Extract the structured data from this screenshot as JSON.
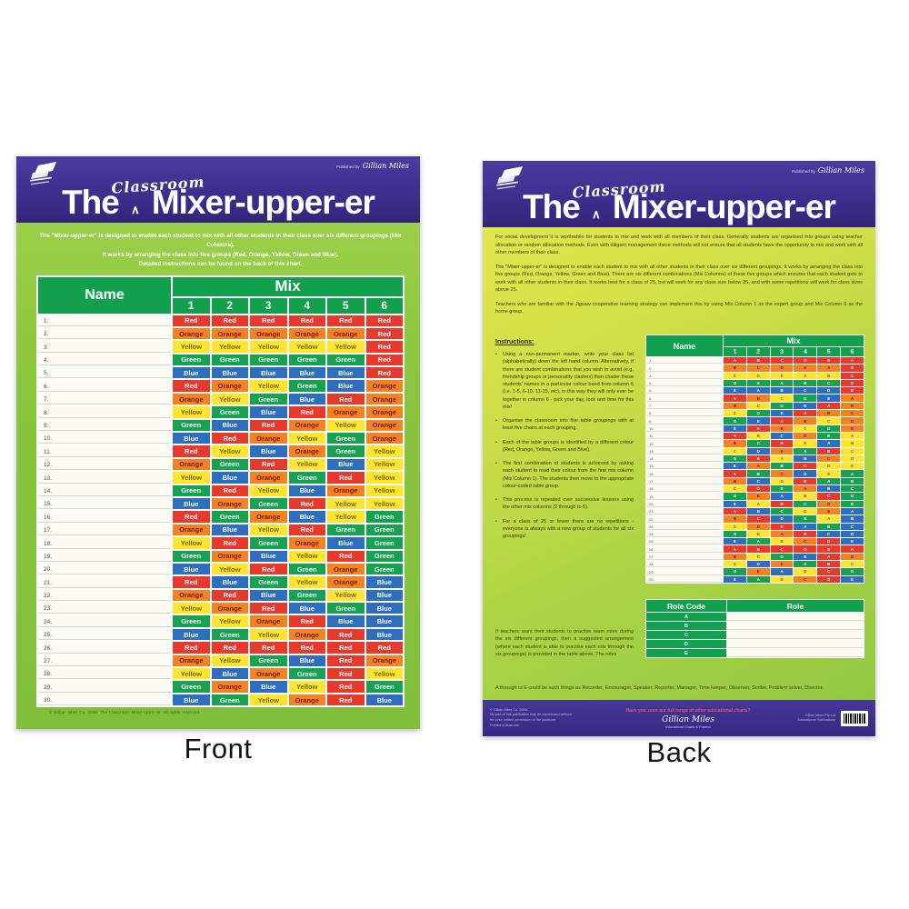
{
  "page": {
    "front_label": "Front",
    "back_label": "Back"
  },
  "colors": {
    "red": "#e8392c",
    "orange": "#f58220",
    "yellow": "#ffe52e",
    "green": "#15a351",
    "blue": "#2d6ec0",
    "header_green": "#11a04d",
    "banner_purple": "#3a2b89"
  },
  "header": {
    "title_the": "The",
    "title_classroom": "Classroom",
    "caret": "∧",
    "title_main": "Mixer-upper-er",
    "published_by": "Published by",
    "brand": "Gillian Miles"
  },
  "front": {
    "intro_lines": [
      "The \"Mixer-upper-er\" is designed to enable each student to mix with all other students in their class over six different groupings (Mix Columns).",
      "It works by arranging the class into five groups (Red, Orange, Yellow, Green and Blue).",
      "Detailed instructions can be found on the back of this chart."
    ],
    "table": {
      "name_header": "Name",
      "mix_header": "Mix",
      "cols": [
        "1",
        "2",
        "3",
        "4",
        "5",
        "6"
      ],
      "rows": [
        {
          "num": "1.",
          "colors": [
            "Red",
            "Red",
            "Red",
            "Red",
            "Red",
            "Red"
          ]
        },
        {
          "num": "2.",
          "colors": [
            "Orange",
            "Orange",
            "Orange",
            "Orange",
            "Orange",
            "Red"
          ]
        },
        {
          "num": "3.",
          "colors": [
            "Yellow",
            "Yellow",
            "Yellow",
            "Yellow",
            "Yellow",
            "Red"
          ]
        },
        {
          "num": "4.",
          "colors": [
            "Green",
            "Green",
            "Green",
            "Green",
            "Green",
            "Red"
          ]
        },
        {
          "num": "5.",
          "colors": [
            "Blue",
            "Blue",
            "Blue",
            "Blue",
            "Blue",
            "Red"
          ]
        },
        {
          "num": "6.",
          "colors": [
            "Red",
            "Orange",
            "Yellow",
            "Green",
            "Blue",
            "Orange"
          ]
        },
        {
          "num": "7.",
          "colors": [
            "Orange",
            "Yellow",
            "Green",
            "Blue",
            "Red",
            "Orange"
          ]
        },
        {
          "num": "8.",
          "colors": [
            "Yellow",
            "Green",
            "Blue",
            "Red",
            "Orange",
            "Orange"
          ]
        },
        {
          "num": "9.",
          "colors": [
            "Green",
            "Blue",
            "Red",
            "Orange",
            "Yellow",
            "Orange"
          ]
        },
        {
          "num": "10.",
          "colors": [
            "Blue",
            "Red",
            "Orange",
            "Yellow",
            "Green",
            "Orange"
          ]
        },
        {
          "num": "11.",
          "colors": [
            "Red",
            "Yellow",
            "Blue",
            "Orange",
            "Green",
            "Yellow"
          ]
        },
        {
          "num": "12.",
          "colors": [
            "Orange",
            "Green",
            "Red",
            "Yellow",
            "Blue",
            "Yellow"
          ]
        },
        {
          "num": "13.",
          "colors": [
            "Yellow",
            "Blue",
            "Orange",
            "Green",
            "Red",
            "Yellow"
          ]
        },
        {
          "num": "14.",
          "colors": [
            "Green",
            "Red",
            "Yellow",
            "Blue",
            "Orange",
            "Yellow"
          ]
        },
        {
          "num": "15.",
          "colors": [
            "Blue",
            "Orange",
            "Green",
            "Red",
            "Yellow",
            "Yellow"
          ]
        },
        {
          "num": "16.",
          "colors": [
            "Red",
            "Green",
            "Orange",
            "Blue",
            "Yellow",
            "Green"
          ]
        },
        {
          "num": "17.",
          "colors": [
            "Orange",
            "Blue",
            "Yellow",
            "Red",
            "Green",
            "Green"
          ]
        },
        {
          "num": "18.",
          "colors": [
            "Yellow",
            "Red",
            "Green",
            "Orange",
            "Blue",
            "Green"
          ]
        },
        {
          "num": "19.",
          "colors": [
            "Green",
            "Orange",
            "Blue",
            "Yellow",
            "Red",
            "Green"
          ]
        },
        {
          "num": "20.",
          "colors": [
            "Blue",
            "Yellow",
            "Red",
            "Green",
            "Orange",
            "Green"
          ]
        },
        {
          "num": "21.",
          "colors": [
            "Red",
            "Blue",
            "Green",
            "Yellow",
            "Orange",
            "Blue"
          ]
        },
        {
          "num": "22.",
          "colors": [
            "Orange",
            "Red",
            "Blue",
            "Green",
            "Yellow",
            "Blue"
          ]
        },
        {
          "num": "23.",
          "colors": [
            "Yellow",
            "Orange",
            "Red",
            "Blue",
            "Green",
            "Blue"
          ]
        },
        {
          "num": "24.",
          "colors": [
            "Green",
            "Yellow",
            "Orange",
            "Red",
            "Blue",
            "Blue"
          ]
        },
        {
          "num": "25.",
          "colors": [
            "Blue",
            "Green",
            "Yellow",
            "Orange",
            "Red",
            "Blue"
          ]
        },
        {
          "num": "26.",
          "colors": [
            "Red",
            "Red",
            "Red",
            "Red",
            "Red",
            "Red"
          ]
        },
        {
          "num": "27.",
          "colors": [
            "Orange",
            "Yellow",
            "Green",
            "Blue",
            "Red",
            "Orange"
          ]
        },
        {
          "num": "28.",
          "colors": [
            "Yellow",
            "Blue",
            "Orange",
            "Green",
            "Red",
            "Yellow"
          ]
        },
        {
          "num": "29.",
          "colors": [
            "Green",
            "Orange",
            "Blue",
            "Yellow",
            "Red",
            "Green"
          ]
        },
        {
          "num": "30.",
          "colors": [
            "Blue",
            "Green",
            "Yellow",
            "Orange",
            "Red",
            "Blue"
          ]
        }
      ]
    },
    "footer_note": "© Gillian Miles Co. 2008.  The Classroom Mixer-upper-er.  All rights reserved."
  },
  "back": {
    "paragraphs": [
      "For social development it is worthwhile for students to mix and work with all members of their class. Generally students are organised into groups using teacher allocation or random allocation methods. Even with diligent management these methods will not ensure that all students have the opportunity to mix and work with all other members of their class.",
      "The \"Mixer-upper-er\" is designed to enable each student to mix with all other students in their class over six different groupings. It works by arranging the class into five groups (Red, Orange, Yellow, Green and Blue). There are six different combinations (Mix Columns) of these five groups which ensures that each student gets to work with all other students in their class. It works best for a class of 25, but will work for any class size below 25, and with some repetitions will work for class sizes above 25.",
      "Teachers who are familiar with the Jigsaw cooperative learning strategy can implement this by using Mix Column 1 as the expert group and Mix Column 6 as the home group."
    ],
    "instructions_title": "Instructions:",
    "bullets": [
      "Using a non-permanent marker, write your class list (alphabetically) down the left hand column.  Alternatively, if there are student combinations that you wish to avoid (e.g. friendship groups or personality clashes) then cluster these students' names in a particular colour band from column 6 (i.e. 1-5, 6-10, 11-15, etc), in this way they will only ever be together in column 6 - pick your day, lock and time for this mix!",
      "Organise the classroom into five table groupings with at least five chairs at each grouping.",
      "Each of the table groups is identified by a different colour (Red, Orange, Yellow, Green and Blue).",
      "The first combination of students is achieved by asking each student to read their colour from the first mix column (Mix Column 1). The students then move to the appropriate colour-coded table group.",
      "This process is repeated over successive lessons using the other mix columns (2 through to 6).",
      "For a class of 25 or fewer there are no repetitions - everyone is always with a new group of students for all six groupings!"
    ],
    "closing_paragraph": "If teachers want their students to practise team roles during the six different groupings, then a suggested arrangement (where each student is able to practise each role through the six groupings) is provided in the table above.  The roles",
    "roles_line": "A through to E could be such things as Recorder, Encourager, Speaker, Reporter, Manager, Time keeper, Observer, Scribe, Problem solver, Director.",
    "table": {
      "name_header": "Name",
      "mix_header": "Mix",
      "cols": [
        "1",
        "2",
        "3",
        "4",
        "5",
        "6"
      ],
      "letter_rows": [
        "ABCDEA",
        "BCDEAB",
        "CDEABC",
        "DEABCD",
        "EABCDE",
        "ABCDEA",
        "BCDEAB",
        "CDEABC",
        "DEABCD",
        "EABCDE",
        "ABCDEA",
        "BCDEAB",
        "CDEABC",
        "DEABCD",
        "EABCDE",
        "ABCDEA",
        "BCDEAB",
        "CDEABC",
        "DEABCD",
        "EABCDE",
        "ABCDEA",
        "BCDEAB",
        "CDEABC",
        "DEABCD",
        "EABCDE",
        "ABCDEA",
        "BCDEAB",
        "CDEABC",
        "DEABCD",
        "EABCDE"
      ]
    },
    "role_table": {
      "code_header": "Role Code",
      "role_header": "Role",
      "codes": [
        "A",
        "B",
        "C",
        "D",
        "E"
      ]
    },
    "footer": {
      "left_lines": [
        "© Gillian Miles Co. 2008.",
        "No part of this publication may be reproduced without",
        "the prior written permission of the publisher.",
        "Printed in Australia."
      ],
      "promo": "Have you seen our full range of other educational charts?",
      "brand_script": "Gillian Miles",
      "center_small": "Educational Charts & Posters",
      "right_lines": [
        "Gillian Miles Pty Ltd",
        "Educational Publications"
      ]
    }
  }
}
